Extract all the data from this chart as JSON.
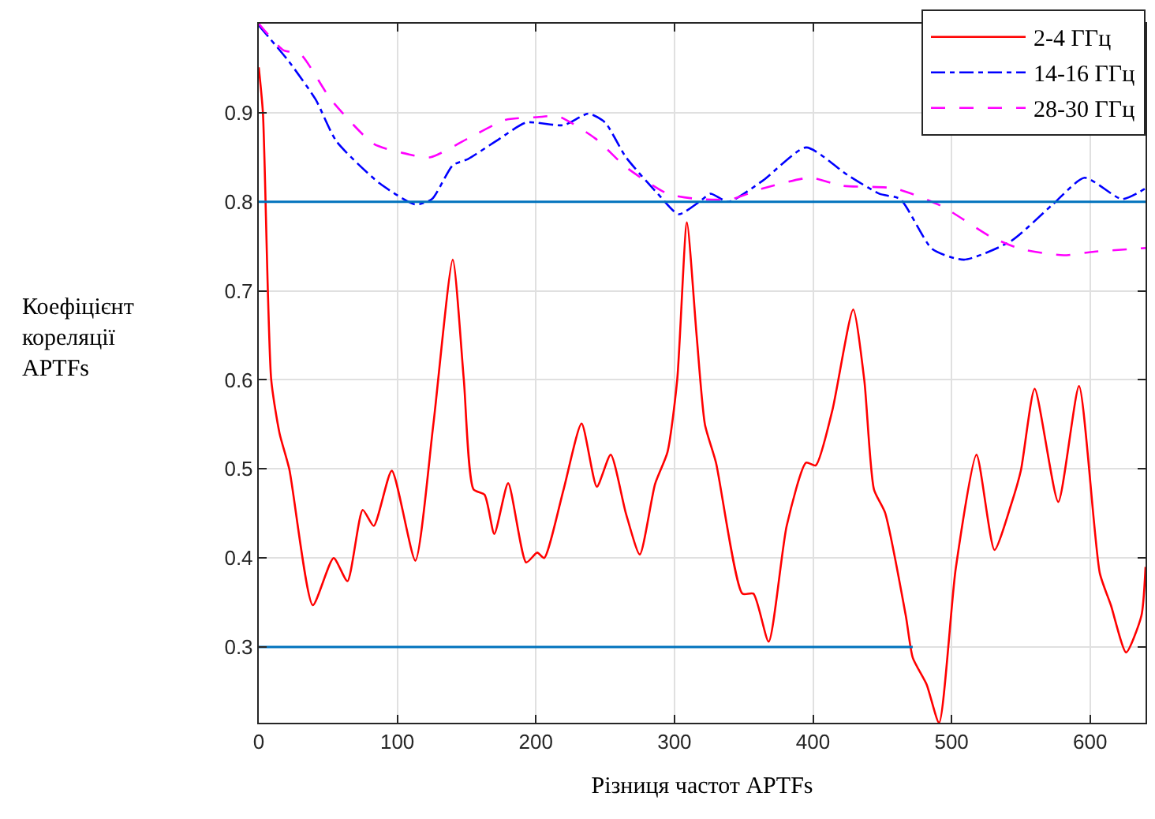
{
  "chart_data": {
    "type": "line",
    "xlabel": "Різниця частот APTFs",
    "ylabel": "Коефіцієнт\nкореляції\nAPTFs",
    "xlim": [
      0,
      640
    ],
    "ylim": [
      0.215,
      1.0
    ],
    "xticks": [
      0,
      100,
      200,
      300,
      400,
      500,
      600
    ],
    "yticks": [
      0.3,
      0.4,
      0.5,
      0.6,
      0.7,
      0.8,
      0.9
    ],
    "grid": true,
    "legend": "top right",
    "ref_lines": [
      {
        "axis": "y",
        "value": 0.8,
        "color": "#0072bd"
      }
    ],
    "series": [
      {
        "name": "2-4 ГГц",
        "color": "#ff0000",
        "line_style": "solid",
        "x": [
          0,
          3,
          9,
          15,
          22,
          39,
          54,
          64,
          75,
          83,
          96,
          113,
          126,
          140,
          148,
          155,
          163,
          170,
          180,
          193,
          201,
          206,
          220,
          233,
          244,
          254,
          265,
          275,
          286,
          295,
          302,
          309,
          316,
          322,
          330,
          349,
          357,
          368,
          381,
          395,
          402,
          414,
          429,
          437,
          444,
          452,
          467,
          472,
          482,
          491,
          503,
          518,
          531,
          543,
          550,
          560,
          577,
          592,
          607,
          615,
          626,
          637,
          640
        ],
        "values": [
          0.951,
          0.9,
          0.6,
          0.54,
          0.5,
          0.347,
          0.4,
          0.374,
          0.454,
          0.436,
          0.498,
          0.397,
          0.55,
          0.735,
          0.6,
          0.477,
          0.471,
          0.427,
          0.484,
          0.395,
          0.406,
          0.4,
          0.477,
          0.551,
          0.48,
          0.516,
          0.45,
          0.404,
          0.483,
          0.519,
          0.6,
          0.777,
          0.65,
          0.55,
          0.507,
          0.36,
          0.36,
          0.306,
          0.436,
          0.507,
          0.504,
          0.566,
          0.679,
          0.6,
          0.477,
          0.451,
          0.335,
          0.288,
          0.258,
          0.215,
          0.388,
          0.516,
          0.409,
          0.46,
          0.498,
          0.59,
          0.463,
          0.593,
          0.383,
          0.347,
          0.294,
          0.335,
          0.39
        ]
      },
      {
        "name": "14-16 ГГц",
        "color": "#0000ff",
        "line_style": "dashdot",
        "x": [
          0,
          22,
          41,
          56,
          87,
          113,
          125,
          140,
          151,
          174,
          193,
          220,
          238,
          250,
          265,
          288,
          303,
          318,
          326,
          339,
          364,
          395,
          425,
          448,
          463,
          486,
          509,
          543,
          573,
          596,
          623,
          640
        ],
        "values": [
          0.998,
          0.957,
          0.915,
          0.868,
          0.821,
          0.797,
          0.803,
          0.841,
          0.848,
          0.871,
          0.889,
          0.886,
          0.899,
          0.889,
          0.85,
          0.809,
          0.786,
          0.8,
          0.809,
          0.8,
          0.824,
          0.861,
          0.83,
          0.809,
          0.803,
          0.747,
          0.735,
          0.756,
          0.797,
          0.827,
          0.803,
          0.815
        ]
      },
      {
        "name": "28-30 ГГц",
        "color": "#ff00ff",
        "line_style": "dashed",
        "x": [
          0,
          18,
          30,
          52,
          83,
          109,
          124,
          151,
          178,
          201,
          216,
          243,
          265,
          295,
          318,
          341,
          364,
          398,
          421,
          459,
          493,
          528,
          550,
          581,
          603,
          640
        ],
        "values": [
          1.0,
          0.97,
          0.966,
          0.915,
          0.865,
          0.853,
          0.85,
          0.871,
          0.892,
          0.895,
          0.896,
          0.871,
          0.839,
          0.809,
          0.803,
          0.803,
          0.815,
          0.827,
          0.818,
          0.815,
          0.795,
          0.761,
          0.747,
          0.74,
          0.744,
          0.748
        ]
      },
      {
        "color": "#0072bd",
        "line_style": "solid",
        "x": [
          0,
          472
        ],
        "values": [
          0.3,
          0.3
        ]
      }
    ]
  }
}
